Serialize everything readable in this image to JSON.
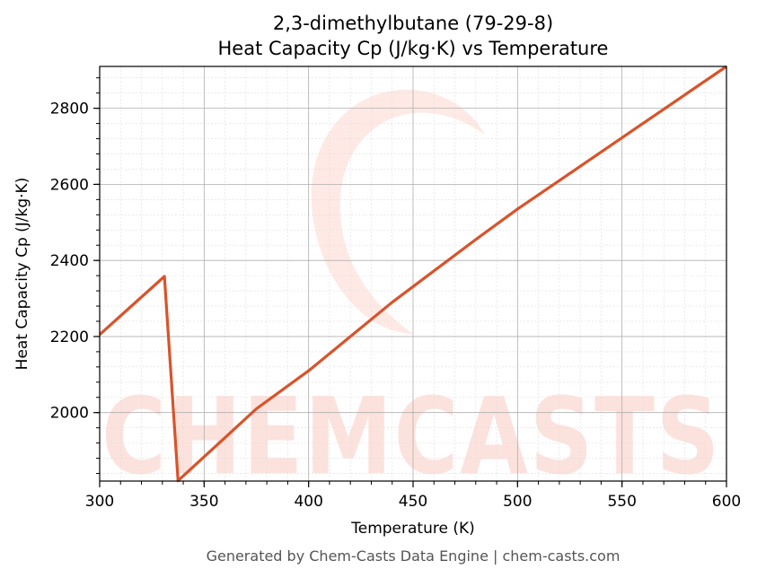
{
  "chart_data": {
    "type": "line",
    "title_line1": "2,3-dimethylbutane (79-29-8)",
    "title_line2": "Heat Capacity Cp (J/kg·K) vs Temperature",
    "xlabel": "Temperature (K)",
    "ylabel": "Heat Capacity Cp (J/kg·K)",
    "xlim": [
      300,
      600
    ],
    "ylim": [
      1820,
      2910
    ],
    "xticks": [
      300,
      350,
      400,
      450,
      500,
      550,
      600
    ],
    "yticks": [
      2000,
      2200,
      2400,
      2600,
      2800
    ],
    "grid": true,
    "line_color": "#d9532a",
    "series": [
      {
        "x": [
          300,
          331,
          337.5,
          375,
          400,
          440,
          480,
          500,
          520,
          560,
          600
        ],
        "y": [
          2205,
          2358,
          1821,
          2010,
          2110,
          2290,
          2455,
          2535,
          2610,
          2760,
          2910
        ]
      }
    ]
  },
  "watermark": {
    "text": "CHEMCASTS",
    "color": "#fcd9d2"
  },
  "footer": "Generated by Chem-Casts Data Engine | chem-casts.com"
}
